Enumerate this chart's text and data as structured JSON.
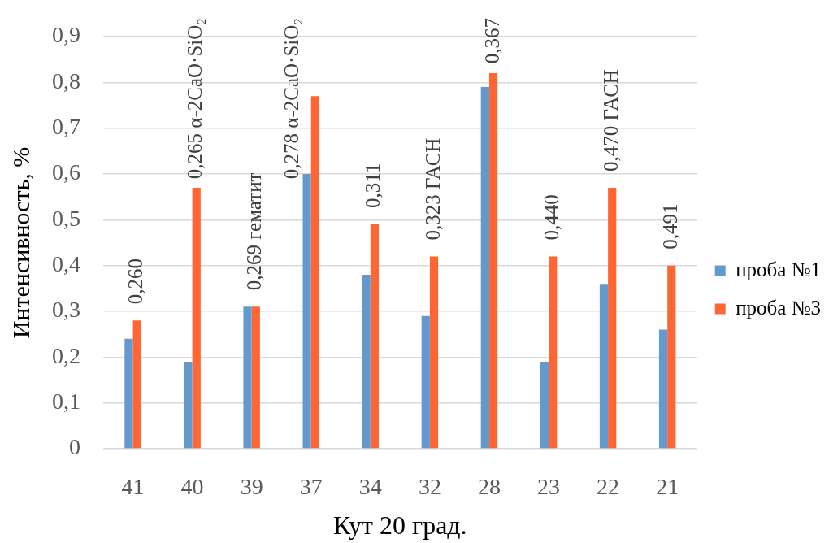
{
  "chart_data": {
    "type": "bar",
    "xlabel": "Кут 20 град.",
    "ylabel": "Интенсивность, %",
    "categories": [
      "41",
      "40",
      "39",
      "37",
      "34",
      "32",
      "28",
      "23",
      "22",
      "21"
    ],
    "series": [
      {
        "name": "проба №1",
        "color": "#6399cd",
        "values": [
          0.24,
          0.19,
          0.31,
          0.6,
          0.38,
          0.29,
          0.79,
          0.19,
          0.36,
          0.26
        ]
      },
      {
        "name": "проба №3",
        "color": "#ff6633",
        "values": [
          0.28,
          0.57,
          0.31,
          0.77,
          0.49,
          0.42,
          0.82,
          0.42,
          0.57,
          0.4
        ]
      }
    ],
    "ylim": [
      0,
      0.9
    ],
    "yticks": [
      0,
      {
        "value": 0.1,
        "label": "0,1"
      },
      {
        "value": 0.2,
        "label": "0,2"
      },
      {
        "value": 0.3,
        "label": "0,3"
      },
      {
        "value": 0.4,
        "label": "0,4"
      },
      {
        "value": 0.5,
        "label": "0,5"
      },
      {
        "value": 0.6,
        "label": "0,6"
      },
      {
        "value": 0.7,
        "label": "0,7"
      },
      {
        "value": 0.8,
        "label": "0,8"
      },
      {
        "value": 0.9,
        "label": "0,9"
      }
    ],
    "grid": "y",
    "legend": "right",
    "annotations": [
      {
        "text": "0,260",
        "x": "41",
        "y": 0.28
      },
      {
        "text": "0,265 α-2CaO·SiO₂",
        "x": "40",
        "y": 0.57
      },
      {
        "text": "0,269 гематит",
        "x": "39",
        "y": 0.31
      },
      {
        "text": "0,278 α-2CaO·SiO₂",
        "x": "37",
        "y": 0.77
      },
      {
        "text": "0,311",
        "x": "34",
        "y": 0.49
      },
      {
        "text": "0,323 ГАСН",
        "x": "32",
        "y": 0.42
      },
      {
        "text": "0,367",
        "x": "28",
        "y": 0.82
      },
      {
        "text": "0,440",
        "x": "23",
        "y": 0.42
      },
      {
        "text": "0,470 ГАСН",
        "x": "22",
        "y": 0.57
      },
      {
        "text": "0,491",
        "x": "21",
        "y": 0.4
      }
    ]
  }
}
